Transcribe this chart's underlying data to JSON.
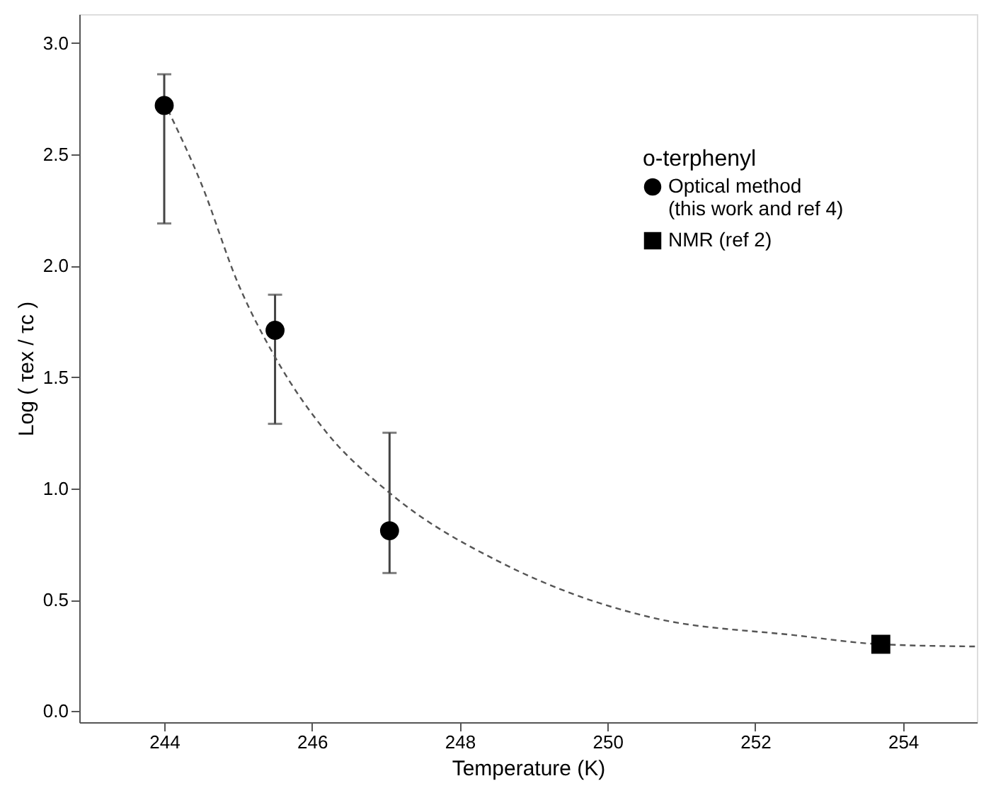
{
  "chart_data": {
    "type": "scatter",
    "xlabel": "Temperature (K)",
    "ylabel": "Log ( τex / τc )",
    "legend_title": "o-terphenyl",
    "xlim": [
      242.85,
      255
    ],
    "xticks": [
      244,
      246,
      248,
      250,
      252,
      254
    ],
    "ylim": [
      -0.05,
      3.13
    ],
    "yticks": [
      {
        "value": 0,
        "label": "0.0"
      },
      {
        "value": 0.5,
        "label": "0.5"
      },
      {
        "value": 1,
        "label": "1.0"
      },
      {
        "value": 1.5,
        "label": "1.5"
      },
      {
        "value": 2,
        "label": "2.0"
      },
      {
        "value": 2.5,
        "label": "2.5"
      },
      {
        "value": 3,
        "label": "3.0"
      }
    ],
    "grid": false,
    "legend": "top right",
    "series": [
      {
        "name": "Optical method\n(this work and ref 4)",
        "marker": "circle",
        "color": "#000000",
        "x": [
          244.0,
          245.5,
          247.05
        ],
        "values": [
          2.72,
          1.71,
          0.81
        ],
        "errors": [
          [
            2.19,
            2.86
          ],
          [
            1.29,
            1.87
          ],
          [
            0.62,
            1.25
          ]
        ]
      },
      {
        "name": "NMR (ref 2)",
        "marker": "square",
        "color": "#000000",
        "x": [
          253.7
        ],
        "values": [
          0.3
        ]
      },
      {
        "type": "line",
        "line_style": "dashed",
        "color": "#555555",
        "x": [
          244.05,
          244.5,
          245.0,
          245.5,
          246.2,
          247.05,
          248.6,
          249.5,
          250.6,
          252.55,
          253.7,
          254.98
        ],
        "values": [
          2.7,
          2.37,
          1.92,
          1.59,
          1.25,
          0.98,
          0.66,
          0.53,
          0.42,
          0.34,
          0.3,
          0.29
        ]
      }
    ]
  }
}
